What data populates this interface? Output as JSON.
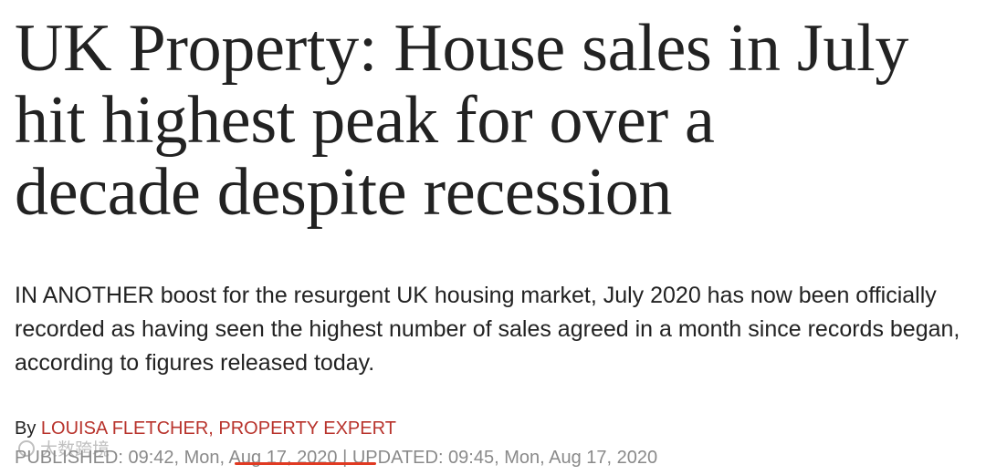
{
  "article": {
    "headline_lines": [
      "UK Property: House sales in July",
      "hit highest peak for over a",
      "decade despite recession"
    ],
    "standfirst": "IN ANOTHER boost for the resurgent UK housing market, July 2020 has now been officially recorded as having seen the highest number of sales agreed in a month since records began, according to figures released today.",
    "byline_prefix": "By ",
    "author": "LOUISA FLETCHER, PROPERTY EXPERT",
    "dateline": "PUBLISHED: 09:42, Mon, Aug 17, 2020 | UPDATED: 09:45, Mon, Aug 17, 2020"
  },
  "annotation": {
    "underline_color": "#e03a22"
  },
  "watermark": {
    "icon": "watermark-logo-icon",
    "text": "大数跨境"
  }
}
